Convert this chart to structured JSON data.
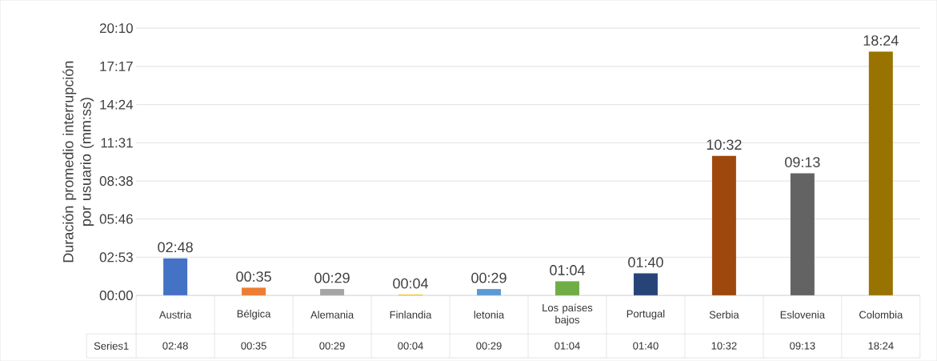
{
  "chart_data": {
    "type": "bar",
    "ylabel": "Duración promedio interrupción por usuario (mm:ss)",
    "categories": [
      "Austria",
      "Bélgica",
      "Alemania",
      "Finlandia",
      "letonia",
      "Los países bajos",
      "Portugal",
      "Serbia",
      "Eslovenia",
      "Colombia"
    ],
    "series": [
      {
        "name": "Series1",
        "colors": [
          "#4472c4",
          "#ed7d31",
          "#a5a5a5",
          "#ffc000",
          "#5b9bd5",
          "#70ad47",
          "#264478",
          "#9e480e",
          "#636363",
          "#997300"
        ],
        "values": [
          168,
          35,
          29,
          4,
          29,
          64,
          100,
          632,
          553,
          1104
        ],
        "value_labels": [
          "02:48",
          "00:35",
          "00:29",
          "00:04",
          "00:29",
          "01:04",
          "01:40",
          "10:32",
          "09:13",
          "18:24"
        ]
      }
    ],
    "ylim": [
      0,
      1210
    ],
    "yticks": [
      {
        "value": 0,
        "label": "00:00"
      },
      {
        "value": 173,
        "label": "02:53"
      },
      {
        "value": 346,
        "label": "05:46"
      },
      {
        "value": 518,
        "label": "08:38"
      },
      {
        "value": 691,
        "label": "11:31"
      },
      {
        "value": 864,
        "label": "14:24"
      },
      {
        "value": 1037,
        "label": "17:17"
      },
      {
        "value": 1210,
        "label": "20:10"
      }
    ],
    "grid": "y"
  }
}
